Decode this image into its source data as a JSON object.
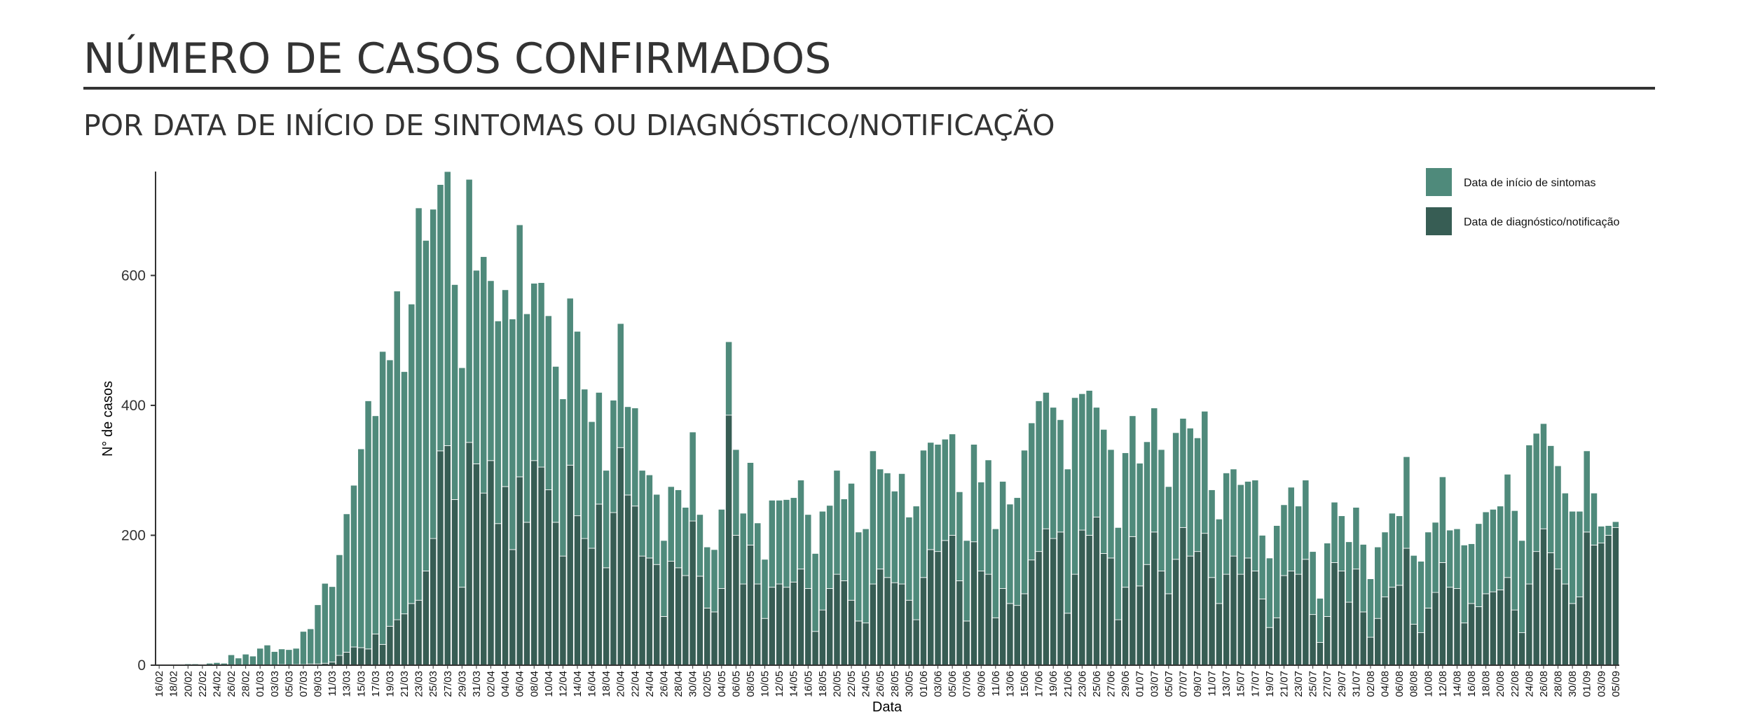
{
  "chart_data": {
    "type": "stacked_bar",
    "title": "NÚMERO DE CASOS CONFIRMADOS",
    "subtitle": "POR DATA DE INÍCIO DE SINTOMAS OU DIAGNÓSTICO/NOTIFICAÇÃO",
    "x_label": "Data",
    "y_label": "N° de casos",
    "ylim": [
      0,
      760
    ],
    "yticks": [
      0,
      200,
      400,
      600
    ],
    "grid": false,
    "legend": "top-right",
    "categories": [
      "16/02",
      null,
      "18/02",
      null,
      "20/02",
      null,
      "22/02",
      null,
      "24/02",
      null,
      "26/02",
      null,
      "28/02",
      null,
      "01/03",
      null,
      "03/03",
      null,
      "05/03",
      null,
      "07/03",
      null,
      "09/03",
      null,
      "11/03",
      null,
      "13/03",
      null,
      "15/03",
      null,
      "17/03",
      null,
      "19/03",
      null,
      "21/03",
      null,
      "23/03",
      null,
      "25/03",
      null,
      "27/03",
      null,
      "29/03",
      null,
      "31/03",
      null,
      "02/04",
      null,
      "04/04",
      null,
      "06/04",
      null,
      "08/04",
      null,
      "10/04",
      null,
      "12/04",
      null,
      "14/04",
      null,
      "16/04",
      null,
      "18/04",
      null,
      "20/04",
      null,
      "22/04",
      null,
      "24/04",
      null,
      "26/04",
      null,
      "28/04",
      null,
      "30/04",
      null,
      "02/05",
      null,
      "04/05",
      null,
      "06/05",
      null,
      "08/05",
      null,
      "10/05",
      null,
      "12/05",
      null,
      "14/05",
      null,
      "16/05",
      null,
      "18/05",
      null,
      "20/05",
      null,
      "22/05",
      null,
      "24/05",
      null,
      "26/05",
      null,
      "28/05",
      null,
      "30/05",
      null,
      "01/06",
      null,
      "03/06",
      null,
      "05/06",
      null,
      "07/06",
      null,
      "09/06",
      null,
      "11/06",
      null,
      "13/06",
      null,
      "15/06",
      null,
      "17/06",
      null,
      "19/06",
      null,
      "21/06",
      null,
      "23/06",
      null,
      "25/06",
      null,
      "27/06",
      null,
      "29/06",
      null,
      "01/07",
      null,
      "03/07",
      null,
      "05/07",
      null,
      "07/07",
      null,
      "09/07",
      null,
      "11/07",
      null,
      "13/07",
      null,
      "15/07",
      null,
      "17/07",
      null,
      "19/07",
      null,
      "21/07",
      null,
      "23/07",
      null,
      "25/07",
      null,
      "27/07",
      null,
      "29/07",
      null,
      "31/07",
      null,
      "02/08",
      null,
      "04/08",
      null,
      "06/08",
      null,
      "08/08",
      null,
      "10/08",
      null,
      "12/08",
      null,
      "14/08",
      null,
      "16/08",
      null,
      "18/08",
      null,
      "20/08",
      null,
      "22/08",
      null,
      "24/08",
      null,
      "26/08",
      null,
      "28/08",
      null,
      "30/08",
      null,
      "01/09",
      null,
      "03/09",
      null,
      "05/09"
    ],
    "series": [
      {
        "name": "Data de início de sintomas",
        "color": "#4f8a7b",
        "values": [
          0,
          0,
          0,
          0,
          2,
          2,
          1,
          3,
          4,
          3,
          16,
          11,
          17,
          14,
          26,
          31,
          21,
          24,
          24,
          25,
          51,
          54,
          91,
          123,
          116,
          155,
          213,
          249,
          306,
          382,
          336,
          451,
          410,
          506,
          373,
          461,
          604,
          509,
          507,
          410,
          422,
          331,
          338,
          405,
          298,
          364,
          277,
          312,
          303,
          355,
          388,
          321,
          273,
          284,
          268,
          240,
          242,
          257,
          284,
          230,
          195,
          172,
          150,
          173,
          191,
          136,
          151,
          132,
          128,
          108,
          117,
          115,
          120,
          105,
          137,
          95,
          94,
          96,
          122,
          113,
          132,
          109,
          127,
          94,
          91,
          134,
          129,
          135,
          130,
          137,
          114,
          120,
          152,
          128,
          160,
          126,
          180,
          137,
          145,
          205,
          154,
          161,
          141,
          170,
          128,
          175,
          196,
          165,
          165,
          156,
          156,
          137,
          124,
          150,
          137,
          176,
          137,
          165,
          153,
          166,
          221,
          211,
          232,
          210,
          202,
          173,
          222,
          272,
          210,
          223,
          169,
          191,
          167,
          142,
          207,
          186,
          189,
          189,
          191,
          187,
          165,
          195,
          168,
          197,
          175,
          188,
          135,
          130,
          156,
          134,
          138,
          118,
          140,
          98,
          107,
          142,
          109,
          129,
          105,
          122,
          97,
          68,
          113,
          93,
          85,
          93,
          95,
          104,
          90,
          110,
          100,
          114,
          107,
          141,
          106,
          110,
          117,
          108,
          132,
          88,
          92,
          120,
          92,
          128,
          126,
          127,
          129,
          159,
          153,
          142,
          214,
          182,
          162,
          165,
          159,
          140,
          142,
          132,
          125,
          80,
          26,
          15,
          9
        ]
      },
      {
        "name": "Data de diagnóstico/notificação",
        "color": "#375d54",
        "values": [
          0,
          0,
          0,
          0,
          0,
          0,
          0,
          0,
          0,
          0,
          0,
          0,
          0,
          0,
          0,
          0,
          0,
          1,
          0,
          1,
          1,
          2,
          2,
          3,
          5,
          15,
          20,
          28,
          27,
          25,
          48,
          32,
          60,
          70,
          79,
          95,
          100,
          145,
          195,
          330,
          338,
          255,
          120,
          343,
          310,
          265,
          315,
          218,
          275,
          178,
          290,
          220,
          315,
          305,
          270,
          220,
          168,
          308,
          230,
          195,
          180,
          248,
          150,
          235,
          335,
          262,
          245,
          168,
          165,
          155,
          75,
          160,
          150,
          138,
          222,
          137,
          88,
          82,
          118,
          385,
          200,
          125,
          185,
          125,
          72,
          120,
          125,
          120,
          128,
          148,
          118,
          52,
          85,
          118,
          140,
          130,
          100,
          68,
          65,
          125,
          148,
          135,
          127,
          125,
          100,
          70,
          135,
          178,
          175,
          192,
          200,
          130,
          68,
          190,
          145,
          140,
          73,
          118,
          95,
          92,
          110,
          162,
          175,
          210,
          195,
          205,
          80,
          140,
          208,
          200,
          228,
          172,
          165,
          70,
          120,
          198,
          122,
          155,
          205,
          145,
          110,
          163,
          212,
          168,
          175,
          203,
          135,
          95,
          140,
          168,
          140,
          165,
          145,
          102,
          58,
          73,
          138,
          145,
          140,
          163,
          78,
          35,
          75,
          158,
          145,
          97,
          148,
          82,
          43,
          72,
          105,
          120,
          123,
          180,
          63,
          50,
          88,
          112,
          158,
          120,
          118,
          65,
          95,
          90,
          110,
          113,
          116,
          135,
          85,
          50,
          125,
          175,
          210,
          173,
          148,
          125,
          95,
          105,
          205,
          185,
          188,
          200,
          212
        ]
      }
    ]
  }
}
